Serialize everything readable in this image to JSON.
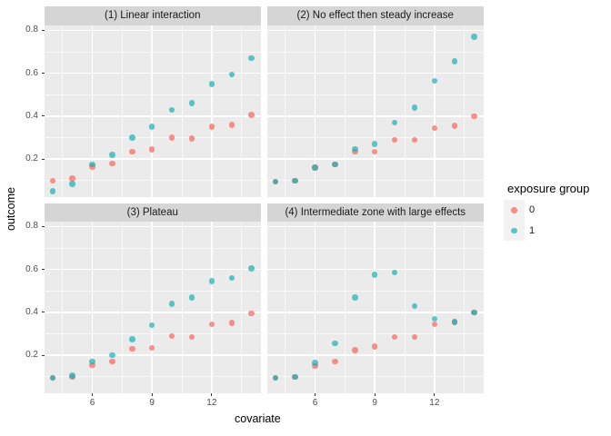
{
  "figure_title": "",
  "axes": {
    "x_label": "covariate",
    "y_label": "outcome"
  },
  "chart_data": {
    "type": "scatter",
    "faceted": true,
    "x_label": "covariate",
    "y_label": "outcome",
    "x": [
      4,
      5,
      6,
      7,
      8,
      9,
      10,
      11,
      12,
      13,
      14
    ],
    "x_ticks": [
      6,
      9,
      12
    ],
    "y_ticks": [
      0.2,
      0.4,
      0.6,
      0.8
    ],
    "x_minor_gridlines": [
      4.5,
      7.5,
      10.5,
      13.5
    ],
    "y_minor_gridlines": [
      0.1,
      0.3,
      0.5,
      0.7
    ],
    "xlim": [
      3.6,
      14.45
    ],
    "ylim": [
      0.025,
      0.825
    ],
    "grid": true,
    "legend": {
      "title": "exposure group",
      "position": "right",
      "entries": [
        {
          "label": "0",
          "color": "rgba(248,113,105,0.78)"
        },
        {
          "label": "1",
          "color": "rgba(26,175,180,0.70)"
        }
      ]
    },
    "facets": [
      {
        "label": "(1) Linear interaction",
        "series": [
          {
            "name": "0",
            "values": [
              0.1,
              0.11,
              0.165,
              0.18,
              0.235,
              0.245,
              0.3,
              0.295,
              0.35,
              0.36,
              0.405
            ]
          },
          {
            "name": "1",
            "values": [
              0.05,
              0.085,
              0.175,
              0.22,
              0.3,
              0.35,
              0.43,
              0.46,
              0.55,
              0.595,
              0.67
            ]
          }
        ]
      },
      {
        "label": "(2) No effect then steady increase",
        "series": [
          {
            "name": "0",
            "values": [
              0.095,
              0.1,
              0.16,
              0.175,
              0.235,
              0.235,
              0.29,
              0.29,
              0.345,
              0.355,
              0.4
            ]
          },
          {
            "name": "1",
            "values": [
              0.095,
              0.1,
              0.16,
              0.175,
              0.248,
              0.27,
              0.37,
              0.44,
              0.565,
              0.655,
              0.77
            ]
          }
        ]
      },
      {
        "label": "(3) Plateau",
        "series": [
          {
            "name": "0",
            "values": [
              0.095,
              0.1,
              0.155,
              0.17,
              0.23,
              0.235,
              0.29,
              0.285,
              0.345,
              0.35,
              0.395
            ]
          },
          {
            "name": "1",
            "values": [
              0.095,
              0.105,
              0.17,
              0.2,
              0.275,
              0.34,
              0.44,
              0.47,
              0.545,
              0.56,
              0.605
            ]
          }
        ]
      },
      {
        "label": "(4) Intermediate zone with large effects",
        "series": [
          {
            "name": "0",
            "values": [
              0.095,
              0.1,
              0.15,
              0.17,
              0.225,
              0.24,
              0.285,
              0.285,
              0.345,
              0.355,
              0.4
            ]
          },
          {
            "name": "1",
            "values": [
              0.095,
              0.1,
              0.165,
              0.255,
              0.47,
              0.575,
              0.585,
              0.43,
              0.37,
              0.355,
              0.4
            ]
          }
        ]
      }
    ],
    "colors": {
      "group0_point": "rgba(248,113,105,0.78)",
      "group1_point": "rgba(26,175,180,0.70)",
      "panel_background": "#EBEBEB",
      "strip_background": "#D5D5D5",
      "gridline": "#FFFFFF",
      "legend_key_background": "#F2F2F2",
      "axis_text": "#4D4D4D",
      "tick_mark": "#333333"
    }
  }
}
